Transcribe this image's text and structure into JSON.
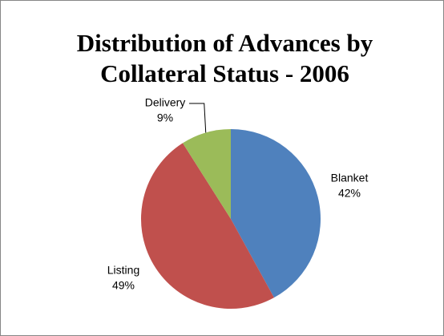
{
  "chart_data": {
    "type": "pie",
    "title": "Distribution of Advances by Collateral Status - 2006",
    "categories": [
      "Blanket",
      "Listing",
      "Delivery"
    ],
    "values": [
      42,
      49,
      9
    ],
    "value_labels": [
      "42%",
      "49%",
      "9%"
    ],
    "colors": [
      "#4f81bd",
      "#c0504d",
      "#9bbb59"
    ]
  }
}
